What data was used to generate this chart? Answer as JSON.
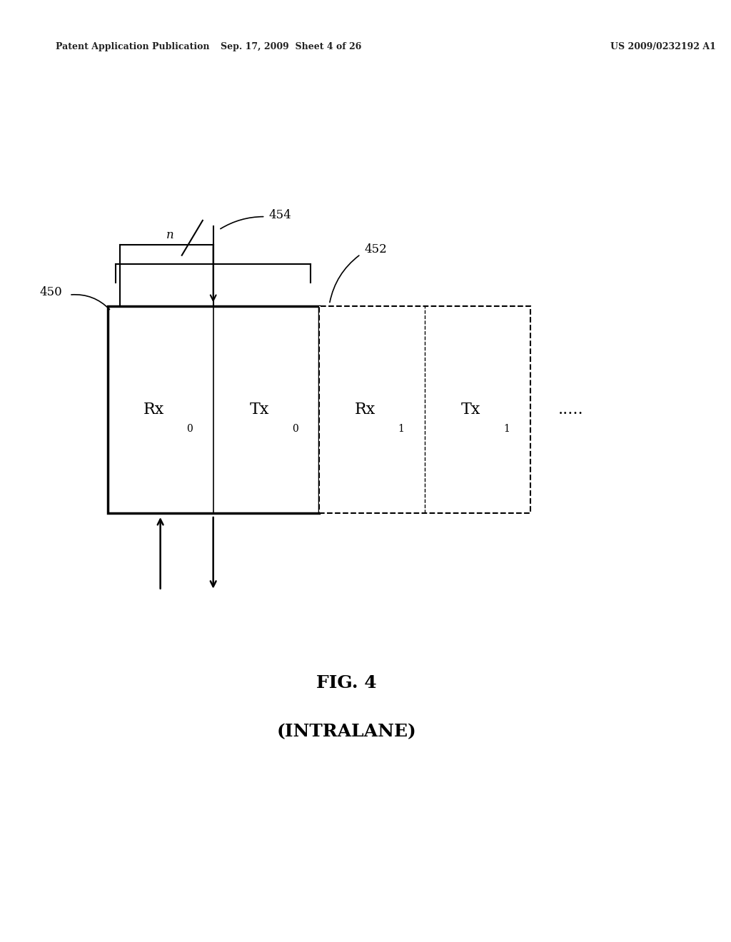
{
  "bg_color": "#ffffff",
  "header_left": "Patent Application Publication",
  "header_center": "Sep. 17, 2009  Sheet 4 of 26",
  "header_right": "US 2009/0232192 A1",
  "header_fontsize": 9,
  "fig_caption": "FIG. 4",
  "fig_subcaption": "(INTRALANE)",
  "caption_fontsize": 18,
  "label_450": "450",
  "label_452": "452",
  "label_454": "454",
  "label_n": "n",
  "rx0_label": "Rx",
  "rx0_sub": "0",
  "tx0_label": "Tx",
  "tx0_sub": "0",
  "rx1_label": "Rx",
  "rx1_sub": "1",
  "tx1_label": "Tx",
  "tx1_sub": "1",
  "dots_label": ".....",
  "solid_lw": 2.5,
  "dashed_lw": 1.5
}
